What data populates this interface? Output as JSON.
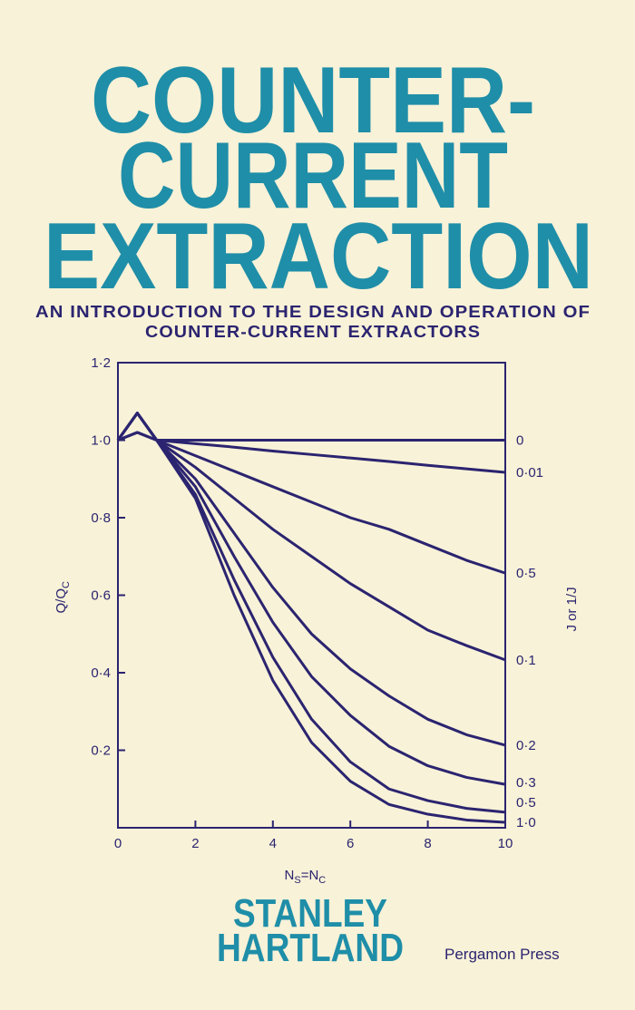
{
  "cover": {
    "title_lines": [
      "COUNTER-",
      "CURRENT",
      "EXTRACTION"
    ],
    "subtitle_lines": [
      "AN INTRODUCTION TO THE DESIGN AND OPERATION OF",
      "COUNTER-CURRENT EXTRACTORS"
    ],
    "author_lines": [
      "STANLEY",
      "HARTLAND"
    ],
    "publisher": "Pergamon Press"
  },
  "chart_data": {
    "type": "line",
    "ylabel_parts": [
      "Q/Q",
      "C"
    ],
    "xlabel_parts": [
      "N",
      "S",
      "=N",
      "C"
    ],
    "y2label": "J or 1/J",
    "x": [
      0,
      0.5,
      1,
      2,
      3,
      4,
      5,
      6,
      7,
      8,
      9,
      10
    ],
    "xlim": [
      0,
      10
    ],
    "xticks": [
      0,
      2,
      4,
      6,
      8,
      10
    ],
    "ylim": [
      0,
      1.2
    ],
    "yticks": [
      {
        "value": 0.2,
        "label": "0·2"
      },
      {
        "value": 0.4,
        "label": "0·4"
      },
      {
        "value": 0.6,
        "label": "0·6"
      },
      {
        "value": 0.8,
        "label": "0·8"
      },
      {
        "value": 1.0,
        "label": "1·0"
      },
      {
        "value": 1.2,
        "label": "1·2"
      }
    ],
    "color": "#2b2470",
    "series": [
      {
        "name": "0",
        "values": [
          1,
          1.02,
          1,
          1,
          1,
          1,
          1,
          1,
          1,
          1,
          1,
          1
        ]
      },
      {
        "name": "0·01",
        "values": [
          1,
          1.02,
          1,
          0.991,
          0.982,
          0.972,
          0.963,
          0.954,
          0.945,
          0.935,
          0.926,
          0.917
        ]
      },
      {
        "name": "0·5",
        "values": [
          1,
          1.07,
          1,
          0.96,
          0.92,
          0.88,
          0.84,
          0.8,
          0.77,
          0.73,
          0.69,
          0.657
        ]
      },
      {
        "name": "0·1",
        "values": [
          1,
          1.07,
          1,
          0.93,
          0.85,
          0.77,
          0.7,
          0.63,
          0.57,
          0.51,
          0.47,
          0.433
        ]
      },
      {
        "name": "0·2",
        "values": [
          1,
          1.07,
          1,
          0.9,
          0.76,
          0.62,
          0.5,
          0.41,
          0.34,
          0.28,
          0.24,
          0.213
        ]
      },
      {
        "name": "0·3",
        "values": [
          1,
          1.07,
          1,
          0.88,
          0.7,
          0.53,
          0.39,
          0.29,
          0.21,
          0.16,
          0.13,
          0.112
        ]
      },
      {
        "name": "0·5",
        "values": [
          1,
          1.07,
          1,
          0.86,
          0.64,
          0.44,
          0.28,
          0.17,
          0.1,
          0.07,
          0.05,
          0.04
        ]
      },
      {
        "name": "1·0",
        "values": [
          1,
          1.07,
          1,
          0.85,
          0.6,
          0.38,
          0.22,
          0.12,
          0.06,
          0.035,
          0.02,
          0.014
        ]
      }
    ]
  }
}
